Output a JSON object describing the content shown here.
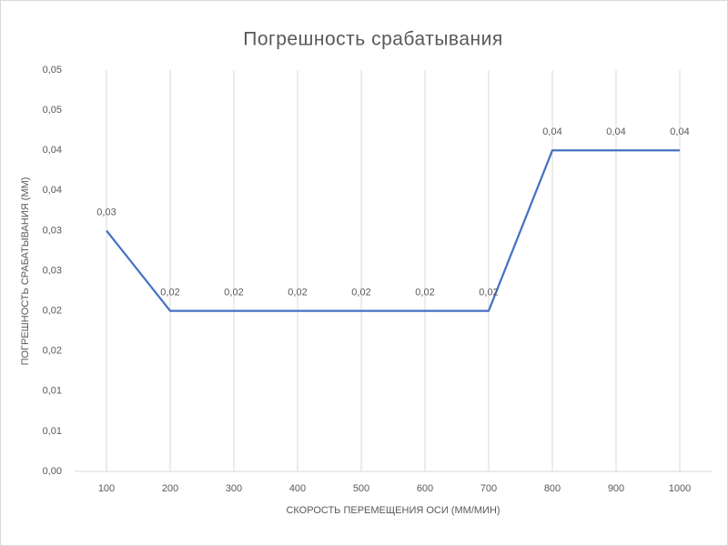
{
  "chart_data": {
    "type": "line",
    "title": "Погрешность срабатывания",
    "x_label": "СКОРОСТЬ ПЕРЕМЕЩЕНИЯ ОСИ (ММ/МИН)",
    "y_label": "ПОГРЕШНОСТЬ СРАБАТЫВАНИЯ (ММ)",
    "categories": [
      "100",
      "200",
      "300",
      "400",
      "500",
      "600",
      "700",
      "800",
      "900",
      "1000"
    ],
    "series": [
      {
        "name": "Погрешность срабатывания",
        "color": "#4472c4",
        "values": [
          0.03,
          0.02,
          0.02,
          0.02,
          0.02,
          0.02,
          0.02,
          0.04,
          0.04,
          0.04
        ],
        "value_labels": [
          "0,03",
          "0,02",
          "0,02",
          "0,02",
          "0,02",
          "0,02",
          "0,02",
          "0,04",
          "0,04",
          "0,04"
        ]
      }
    ],
    "ylim": [
      0,
      0.05
    ],
    "yticks": [
      {
        "value": 0,
        "label": "0,00"
      },
      {
        "value": 0.005,
        "label": "0,01"
      },
      {
        "value": 0.01,
        "label": "0,01"
      },
      {
        "value": 0.015,
        "label": "0,02"
      },
      {
        "value": 0.02,
        "label": "0,02"
      },
      {
        "value": 0.025,
        "label": "0,03"
      },
      {
        "value": 0.03,
        "label": "0,03"
      },
      {
        "value": 0.035,
        "label": "0,04"
      },
      {
        "value": 0.04,
        "label": "0,04"
      },
      {
        "value": 0.045,
        "label": "0,05"
      },
      {
        "value": 0.05,
        "label": "0,05"
      }
    ],
    "grid": "vertical"
  }
}
